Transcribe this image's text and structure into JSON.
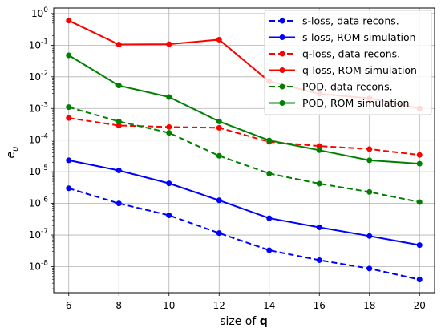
{
  "chart_data": {
    "type": "line",
    "title": "",
    "xlabel_prefix": "size of ",
    "xlabel_bold": "q",
    "ylabel_base": "e",
    "ylabel_sub": "u",
    "y_scale": "log",
    "x": [
      6,
      8,
      10,
      12,
      14,
      16,
      18,
      20
    ],
    "xlim": [
      5.4,
      20.6
    ],
    "ylim": [
      1.5e-09,
      1.5
    ],
    "x_ticks": [
      6,
      8,
      10,
      12,
      14,
      16,
      18,
      20
    ],
    "y_tick_exponents": [
      -8,
      -7,
      -6,
      -5,
      -4,
      -3,
      -2,
      -1,
      0
    ],
    "y_tick_base": "10",
    "grid": true,
    "legend_position": "top-right",
    "series": [
      {
        "name": "s-loss, data recons.",
        "color": "#0000ff",
        "dash": "dashed",
        "values": [
          3e-06,
          1e-06,
          4.2e-07,
          1.15e-07,
          3.3e-08,
          1.6e-08,
          8.7e-09,
          3.9e-09
        ]
      },
      {
        "name": "s-loss, ROM simulation",
        "color": "#0000ff",
        "dash": "solid",
        "values": [
          2.3e-05,
          1.1e-05,
          4.3e-06,
          1.25e-06,
          3.4e-07,
          1.75e-07,
          9.3e-08,
          4.8e-08
        ]
      },
      {
        "name": "q-loss, data recons.",
        "color": "#ff0000",
        "dash": "dashed",
        "values": [
          0.0005,
          0.00029,
          0.00026,
          0.000245,
          8.8e-05,
          6.5e-05,
          5.2e-05,
          3.4e-05
        ]
      },
      {
        "name": "q-loss, ROM simulation",
        "color": "#ff0000",
        "dash": "solid",
        "values": [
          0.6,
          0.105,
          0.108,
          0.15,
          0.0072,
          0.0029,
          0.0021,
          0.001
        ]
      },
      {
        "name": "POD, data recons.",
        "color": "#008000",
        "dash": "dashed",
        "values": [
          0.0011,
          0.00039,
          0.00017,
          3.2e-05,
          8.8e-06,
          4.2e-06,
          2.3e-06,
          1.1e-06
        ]
      },
      {
        "name": "POD, ROM simulation",
        "color": "#008000",
        "dash": "solid",
        "values": [
          0.048,
          0.0053,
          0.0023,
          0.00039,
          9.8e-05,
          4.8e-05,
          2.3e-05,
          1.8e-05
        ]
      }
    ]
  }
}
